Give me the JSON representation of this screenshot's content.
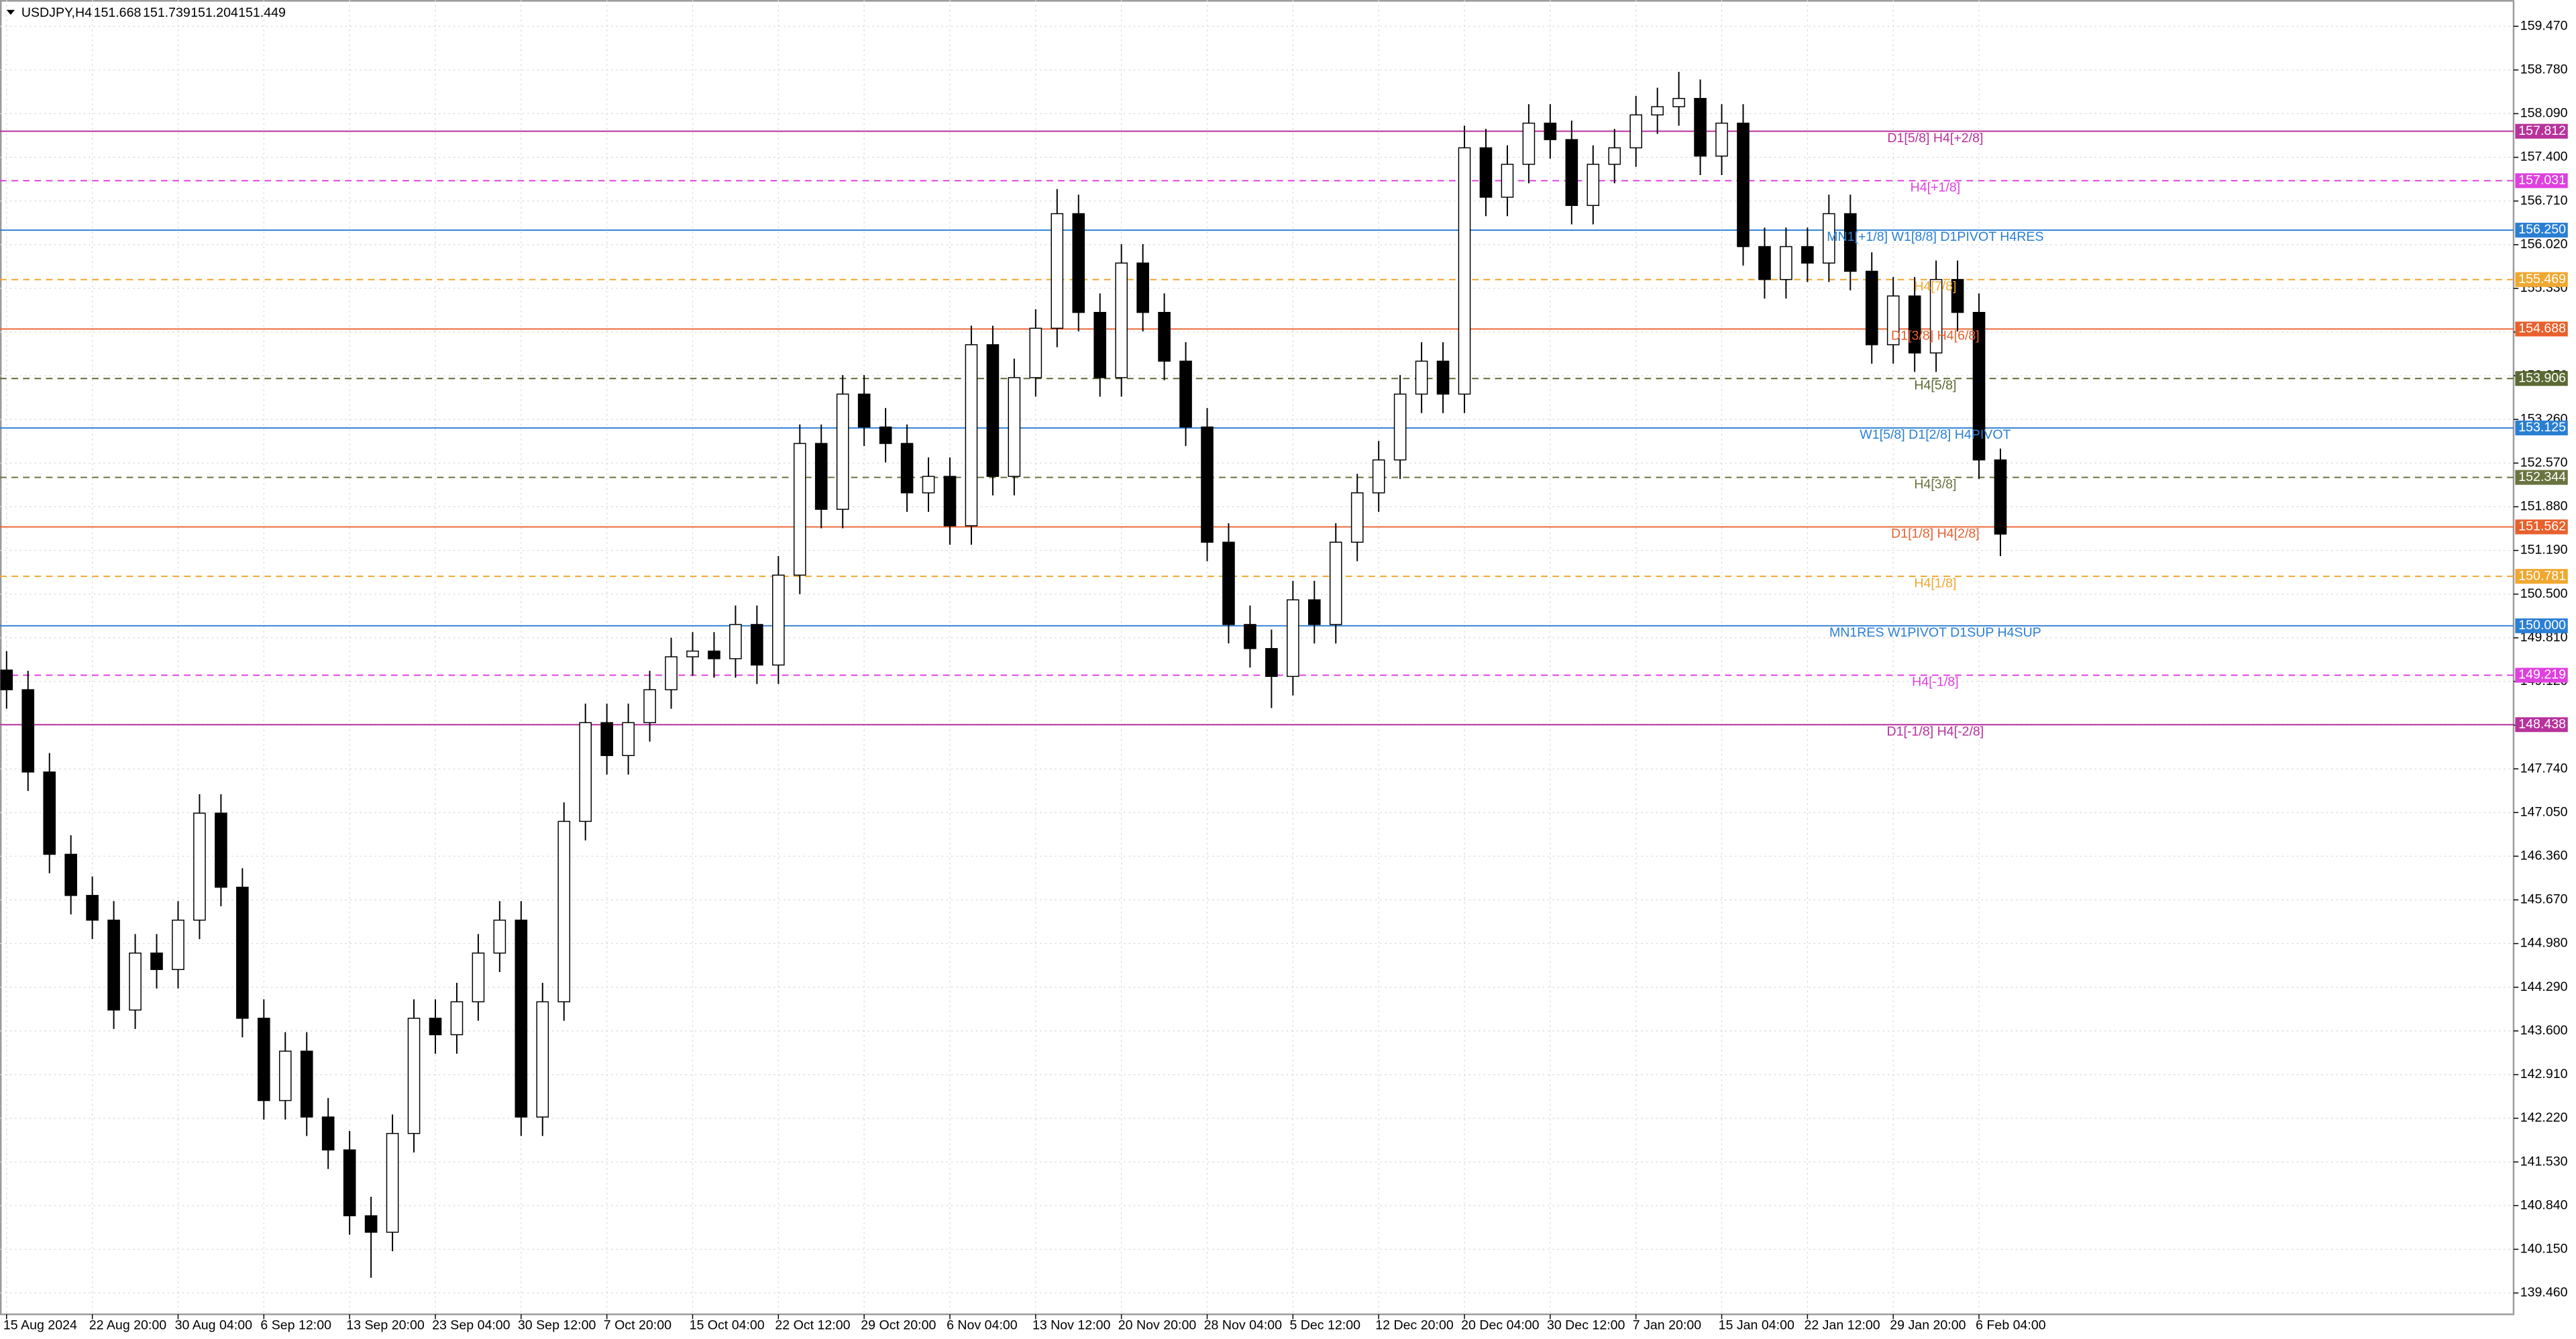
{
  "header": {
    "symbol": "USDJPY,H4",
    "ohlc": [
      151.668,
      151.739,
      151.204,
      151.449
    ]
  },
  "chart_data": {
    "type": "candlestick",
    "categories": [
      "15 Aug 2024",
      null,
      null,
      null,
      "22 Aug 20:00",
      null,
      null,
      null,
      "30 Aug 04:00",
      null,
      null,
      null,
      "6 Sep 12:00",
      null,
      null,
      null,
      "13 Sep 20:00",
      null,
      null,
      null,
      "23 Sep 04:00",
      null,
      null,
      null,
      "30 Sep 12:00",
      null,
      null,
      null,
      "7 Oct 20:00",
      null,
      null,
      null,
      "15 Oct 04:00",
      null,
      null,
      null,
      "22 Oct 12:00",
      null,
      null,
      null,
      "29 Oct 20:00",
      null,
      null,
      null,
      "6 Nov 04:00",
      null,
      null,
      null,
      "13 Nov 12:00",
      null,
      null,
      null,
      "20 Nov 20:00",
      null,
      null,
      null,
      "28 Nov 04:00",
      null,
      null,
      null,
      "5 Dec 12:00",
      null,
      null,
      null,
      "12 Dec 20:00",
      null,
      null,
      null,
      "20 Dec 04:00",
      null,
      null,
      null,
      "30 Dec 12:00",
      null,
      null,
      null,
      "7 Jan 20:00",
      null,
      null,
      null,
      "15 Jan 04:00",
      null,
      null,
      null,
      "22 Jan 12:00",
      null,
      null,
      null,
      "29 Jan 20:00",
      null,
      null,
      null,
      "6 Feb 04:00",
      null
    ],
    "open": [
      149.3,
      148.99,
      147.69,
      146.39,
      145.74,
      145.35,
      143.93,
      144.83,
      144.57,
      145.35,
      147.04,
      145.87,
      143.8,
      142.5,
      143.28,
      142.24,
      141.72,
      140.68,
      140.42,
      141.98,
      143.8,
      143.54,
      144.06,
      144.83,
      145.35,
      142.24,
      144.06,
      146.91,
      148.47,
      147.95,
      148.47,
      148.99,
      149.51,
      149.6,
      149.48,
      150.02,
      149.38,
      150.8,
      152.88,
      151.84,
      153.66,
      153.14,
      152.88,
      152.1,
      152.36,
      151.58,
      154.44,
      152.36,
      153.92,
      154.7,
      156.51,
      154.95,
      153.92,
      155.73,
      154.95,
      154.18,
      153.14,
      151.32,
      150.02,
      149.64,
      149.2,
      150.41,
      150.02,
      151.32,
      152.1,
      152.62,
      153.66,
      154.18,
      153.66,
      157.55,
      156.77,
      157.29,
      157.94,
      157.68,
      156.64,
      157.29,
      157.55,
      158.07,
      158.2,
      158.33,
      157.42,
      157.94,
      155.99,
      155.47,
      155.99,
      155.73,
      156.51,
      155.6,
      154.44,
      155.21,
      154.31,
      155.47,
      154.95,
      152.62
    ],
    "high": [
      149.6,
      149.29,
      147.99,
      146.69,
      146.04,
      145.65,
      145.13,
      145.13,
      145.65,
      147.34,
      147.34,
      146.17,
      144.1,
      143.58,
      143.58,
      142.54,
      142.02,
      140.98,
      142.28,
      144.1,
      144.1,
      144.36,
      145.13,
      145.65,
      145.65,
      144.36,
      147.21,
      148.77,
      148.77,
      148.77,
      149.29,
      149.81,
      149.9,
      149.9,
      150.32,
      150.32,
      151.1,
      153.18,
      153.18,
      153.96,
      153.96,
      153.44,
      153.18,
      152.66,
      152.66,
      154.74,
      154.74,
      154.22,
      155.0,
      156.9,
      156.81,
      155.25,
      156.03,
      156.03,
      155.25,
      154.48,
      153.44,
      151.62,
      150.32,
      149.94,
      150.71,
      150.71,
      151.62,
      152.4,
      152.92,
      153.96,
      154.48,
      154.48,
      157.9,
      157.85,
      157.59,
      158.24,
      158.24,
      157.98,
      157.59,
      157.85,
      158.37,
      158.5,
      158.75,
      158.63,
      158.24,
      158.24,
      156.29,
      156.29,
      156.29,
      156.81,
      156.81,
      155.9,
      155.51,
      155.51,
      155.77,
      155.77,
      155.25,
      152.8
    ],
    "low": [
      148.69,
      147.39,
      146.09,
      145.44,
      145.05,
      143.63,
      143.63,
      144.27,
      144.27,
      145.05,
      145.57,
      143.5,
      142.2,
      142.2,
      141.94,
      141.42,
      140.38,
      139.7,
      140.12,
      141.68,
      143.24,
      143.24,
      143.76,
      144.53,
      141.94,
      141.94,
      143.76,
      146.61,
      147.65,
      147.65,
      148.17,
      148.69,
      149.21,
      149.18,
      149.18,
      149.08,
      149.08,
      150.5,
      151.54,
      151.54,
      152.84,
      152.58,
      151.8,
      151.8,
      151.28,
      151.28,
      152.06,
      152.06,
      153.62,
      154.4,
      154.65,
      153.62,
      153.62,
      154.65,
      153.88,
      152.84,
      151.02,
      149.72,
      149.34,
      148.7,
      148.9,
      149.72,
      149.72,
      151.02,
      151.8,
      152.32,
      153.36,
      153.36,
      153.36,
      156.47,
      156.47,
      156.99,
      157.38,
      156.34,
      156.34,
      156.99,
      157.25,
      157.77,
      157.9,
      157.12,
      157.12,
      155.69,
      155.17,
      155.17,
      155.43,
      155.43,
      155.3,
      154.14,
      154.14,
      154.01,
      154.01,
      154.65,
      152.32,
      151.1
    ],
    "close": [
      148.99,
      147.69,
      146.39,
      145.74,
      145.35,
      143.93,
      144.83,
      144.57,
      145.35,
      147.04,
      145.87,
      143.8,
      142.5,
      143.28,
      142.24,
      141.72,
      140.68,
      140.42,
      141.98,
      143.8,
      143.54,
      144.06,
      144.83,
      145.35,
      142.24,
      144.06,
      146.91,
      148.47,
      147.95,
      148.47,
      148.99,
      149.51,
      149.6,
      149.48,
      150.02,
      149.38,
      150.8,
      152.88,
      151.84,
      153.66,
      153.14,
      152.88,
      152.1,
      152.36,
      151.58,
      154.44,
      152.36,
      153.92,
      154.7,
      156.51,
      154.95,
      153.92,
      155.73,
      154.95,
      154.18,
      153.14,
      151.32,
      150.02,
      149.64,
      149.2,
      150.41,
      150.02,
      151.32,
      152.1,
      152.62,
      153.66,
      154.18,
      153.66,
      157.55,
      156.77,
      157.29,
      157.94,
      157.68,
      156.64,
      157.29,
      157.55,
      158.07,
      158.2,
      158.33,
      157.42,
      157.94,
      155.99,
      155.47,
      155.99,
      155.73,
      156.51,
      155.6,
      154.44,
      155.21,
      154.31,
      155.47,
      154.95,
      152.62,
      151.449
    ],
    "up_color": "#ffffff",
    "down_color": "#000000",
    "ylim": [
      139.123,
      159.885
    ],
    "yticks": [
      {
        "value": 159.47,
        "label": "159.470"
      },
      {
        "value": 158.78,
        "label": "158.780"
      },
      {
        "value": 158.09,
        "label": "158.090"
      },
      {
        "value": 157.4,
        "label": "157.400"
      },
      {
        "value": 156.71,
        "label": "156.710"
      },
      {
        "value": 156.02,
        "label": "156.020"
      },
      {
        "value": 155.33,
        "label": "155.330"
      },
      {
        "value": 154.64,
        "label": "154.640"
      },
      {
        "value": 153.95,
        "label": "153.950"
      },
      {
        "value": 153.26,
        "label": "153.260"
      },
      {
        "value": 152.57,
        "label": "152.570"
      },
      {
        "value": 151.88,
        "label": "151.880"
      },
      {
        "value": 151.19,
        "label": "151.190"
      },
      {
        "value": 150.5,
        "label": "150.500"
      },
      {
        "value": 149.81,
        "label": "149.810"
      },
      {
        "value": 149.12,
        "label": "149.120"
      },
      {
        "value": 148.43,
        "label": "148.430"
      },
      {
        "value": 147.74,
        "label": "147.740"
      },
      {
        "value": 147.05,
        "label": "147.050"
      },
      {
        "value": 146.36,
        "label": "146.360"
      },
      {
        "value": 145.67,
        "label": "145.670"
      },
      {
        "value": 144.98,
        "label": "144.980"
      },
      {
        "value": 144.29,
        "label": "144.290"
      },
      {
        "value": 143.6,
        "label": "143.600"
      },
      {
        "value": 142.91,
        "label": "142.910"
      },
      {
        "value": 142.22,
        "label": "142.220"
      },
      {
        "value": 141.53,
        "label": "141.530"
      },
      {
        "value": 140.84,
        "label": "140.840"
      },
      {
        "value": 140.15,
        "label": "140.150"
      },
      {
        "value": 139.46,
        "label": "139.460"
      }
    ],
    "grid": true,
    "levels": [
      {
        "value": 157.812,
        "name": "D1[5/8] H4[+2/8]",
        "color": "#b8329c",
        "dashed": false
      },
      {
        "value": 157.031,
        "name": "H4[+1/8]",
        "color": "#e040e0",
        "dashed": true
      },
      {
        "value": 156.25,
        "value_label": "156.250",
        "name": "MN1[+1/8] W1[8/8] D1PIVOT H4RES",
        "color": "#2a7fd4",
        "dashed": false
      },
      {
        "value": 155.469,
        "name": "H4[7/8]",
        "color": "#f0a830",
        "dashed": true
      },
      {
        "value": 154.688,
        "name": "D1[3/8] H4[6/8]",
        "color": "#e8602c",
        "dashed": false
      },
      {
        "value": 153.906,
        "name": "H4[5/8]",
        "color": "#5a6a32",
        "dashed": true
      },
      {
        "value": 153.125,
        "name": "W1[5/8] D1[2/8] H4PIVOT",
        "color": "#2a7fd4",
        "dashed": false
      },
      {
        "value": 152.344,
        "name": "H4[3/8]",
        "color": "#6a7440",
        "dashed": true
      },
      {
        "value": 151.562,
        "name": "D1[1/8] H4[2/8]",
        "color": "#e8602c",
        "dashed": false
      },
      {
        "value": 150.781,
        "name": "H4[1/8]",
        "color": "#f0a830",
        "dashed": true
      },
      {
        "value": 150.0,
        "value_label": "150.000",
        "name": "MN1RES W1PIVOT D1SUP H4SUP",
        "color": "#2a7fd4",
        "dashed": false
      },
      {
        "value": 149.219,
        "name": "H4[-1/8]",
        "color": "#e040e0",
        "dashed": true
      },
      {
        "value": 148.438,
        "name": "D1[-1/8] H4[-2/8]",
        "color": "#b8329c",
        "dashed": false
      }
    ]
  }
}
